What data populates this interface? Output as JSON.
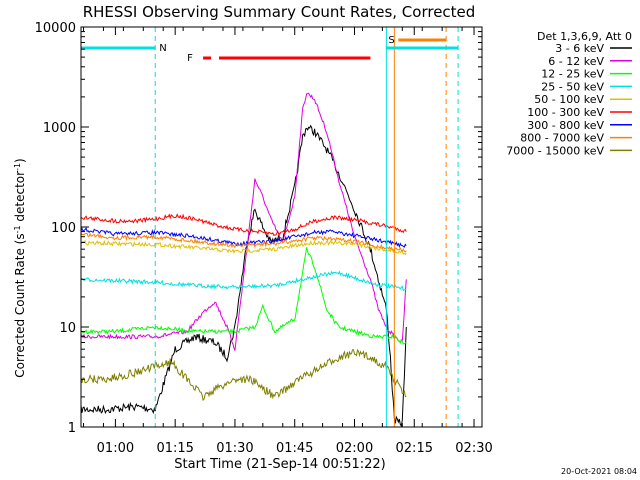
{
  "chart_data": {
    "type": "line",
    "title": "RHESSI Observing Summary Count Rates, Corrected",
    "xlabel": "Start Time (21-Sep-14 00:51:22)",
    "ylabel": "Corrected Count Rate (s⁻¹ detector⁻¹)",
    "yscale": "log",
    "ylim": [
      1,
      10000
    ],
    "xlim": [
      "00:51:22",
      "02:32:00"
    ],
    "x_ticks": [
      "01:00",
      "01:15",
      "01:30",
      "01:45",
      "02:00",
      "02:15",
      "02:30"
    ],
    "y_ticks": [
      "1",
      "10",
      "100",
      "1000",
      "10000"
    ],
    "legend": {
      "position": "right",
      "header": "Det 1,3,6,9, Att 0",
      "entries": [
        {
          "label": "3 - 6 keV",
          "color": "#000000"
        },
        {
          "label": "6 - 12 keV",
          "color": "#e000e0"
        },
        {
          "label": "12 - 25 keV",
          "color": "#00ff00"
        },
        {
          "label": "25 - 50 keV",
          "color": "#00e0e0"
        },
        {
          "label": "50 - 100 keV",
          "color": "#e0c000"
        },
        {
          "label": "100 - 300 keV",
          "color": "#ff0000"
        },
        {
          "label": "300 - 800 keV",
          "color": "#0000ff"
        },
        {
          "label": "800 - 7000 keV",
          "color": "#ff8000"
        },
        {
          "label": "7000 - 15000 keV",
          "color": "#808000"
        }
      ]
    },
    "series": [
      {
        "name": "3 - 6 keV",
        "color": "#000000",
        "x": [
          "00:51:22",
          "00:58",
          "01:05",
          "01:10",
          "01:15",
          "01:20",
          "01:25",
          "01:28",
          "01:30",
          "01:33",
          "01:35",
          "01:37",
          "01:39",
          "01:42",
          "01:45",
          "01:47",
          "01:48",
          "01:50",
          "01:53",
          "01:56",
          "02:00",
          "02:04",
          "02:06",
          "02:08",
          "02:09",
          "02:10",
          "02:11",
          "02:12",
          "02:13"
        ],
        "y": [
          1.5,
          1.5,
          1.6,
          1.5,
          6,
          8,
          7,
          5,
          10,
          70,
          150,
          100,
          70,
          80,
          250,
          800,
          1000,
          900,
          600,
          350,
          150,
          60,
          30,
          15,
          5,
          1.2,
          1.1,
          1.1,
          10
        ]
      },
      {
        "name": "6 - 12 keV",
        "color": "#e000e0",
        "x": [
          "00:51:22",
          "01:00",
          "01:10",
          "01:18",
          "01:22",
          "01:25",
          "01:28",
          "01:30",
          "01:33",
          "01:35",
          "01:37",
          "01:39",
          "01:42",
          "01:45",
          "01:47",
          "01:48",
          "01:50",
          "01:53",
          "01:56",
          "02:00",
          "02:04",
          "02:06",
          "02:08",
          "02:10",
          "02:12",
          "02:13"
        ],
        "y": [
          8,
          8,
          8,
          9,
          14,
          18,
          10,
          6,
          60,
          300,
          200,
          120,
          70,
          200,
          1500,
          2200,
          1900,
          900,
          300,
          80,
          30,
          15,
          10,
          8,
          7,
          30
        ]
      },
      {
        "name": "12 - 25 keV",
        "color": "#00ff00",
        "x": [
          "00:51:22",
          "01:00",
          "01:10",
          "01:20",
          "01:30",
          "01:35",
          "01:37",
          "01:40",
          "01:45",
          "01:48",
          "01:50",
          "01:53",
          "01:56",
          "02:00",
          "02:05",
          "02:10",
          "02:12",
          "02:13"
        ],
        "y": [
          9,
          9,
          10,
          9,
          9,
          10,
          16,
          9,
          12,
          60,
          40,
          15,
          10,
          9,
          8,
          8,
          7,
          7
        ]
      },
      {
        "name": "25 - 50 keV",
        "color": "#00e0e0",
        "x": [
          "00:51:22",
          "01:00",
          "01:10",
          "01:20",
          "01:30",
          "01:40",
          "01:50",
          "01:56",
          "02:00",
          "02:05",
          "02:10",
          "02:13"
        ],
        "y": [
          30,
          29,
          28,
          26,
          25,
          26,
          32,
          35,
          31,
          27,
          25,
          24
        ]
      },
      {
        "name": "50 - 100 keV",
        "color": "#e0c000",
        "x": [
          "00:51:22",
          "01:00",
          "01:10",
          "01:20",
          "01:30",
          "01:40",
          "01:50",
          "02:00",
          "02:05",
          "02:10",
          "02:13"
        ],
        "y": [
          70,
          68,
          67,
          62,
          57,
          60,
          70,
          68,
          62,
          57,
          55
        ]
      },
      {
        "name": "100 - 300 keV",
        "color": "#ff0000",
        "x": [
          "00:51:22",
          "01:00",
          "01:05",
          "01:10",
          "01:15",
          "01:20",
          "01:25",
          "01:30",
          "01:40",
          "01:45",
          "01:50",
          "01:55",
          "02:00",
          "02:05",
          "02:10",
          "02:13"
        ],
        "y": [
          125,
          115,
          115,
          120,
          130,
          120,
          105,
          95,
          85,
          95,
          115,
          125,
          118,
          108,
          98,
          90
        ]
      },
      {
        "name": "300 - 800 keV",
        "color": "#0000ff",
        "x": [
          "00:51:22",
          "01:00",
          "01:10",
          "01:20",
          "01:30",
          "01:40",
          "01:45",
          "01:50",
          "01:55",
          "02:00",
          "02:05",
          "02:10",
          "02:13"
        ],
        "y": [
          95,
          85,
          88,
          80,
          68,
          72,
          80,
          88,
          90,
          82,
          75,
          68,
          65
        ]
      },
      {
        "name": "800 - 7000 keV",
        "color": "#ff8000",
        "x": [
          "00:51:22",
          "01:00",
          "01:10",
          "01:20",
          "01:30",
          "01:40",
          "01:50",
          "02:00",
          "02:05",
          "02:10",
          "02:13"
        ],
        "y": [
          85,
          78,
          80,
          72,
          65,
          68,
          78,
          72,
          65,
          60,
          58
        ]
      },
      {
        "name": "7000 - 15000 keV",
        "color": "#808000",
        "x": [
          "00:51:22",
          "00:58",
          "01:05",
          "01:10",
          "01:14",
          "01:18",
          "01:22",
          "01:26",
          "01:30",
          "01:34",
          "01:40",
          "01:46",
          "01:52",
          "01:56",
          "02:00",
          "02:04",
          "02:08",
          "02:10",
          "02:13"
        ],
        "y": [
          3,
          3,
          3.5,
          4,
          4.5,
          3,
          2,
          2.5,
          3,
          3,
          2,
          3,
          4,
          5,
          5.5,
          5,
          4,
          3,
          2
        ]
      }
    ],
    "annotations": [
      {
        "text": "N",
        "color": "#00e0e0"
      },
      {
        "text": "F",
        "color": "#ff0000"
      },
      {
        "text": "S",
        "color": "#ff8000"
      }
    ],
    "footer_date": "20-Oct-2021 08:04"
  }
}
